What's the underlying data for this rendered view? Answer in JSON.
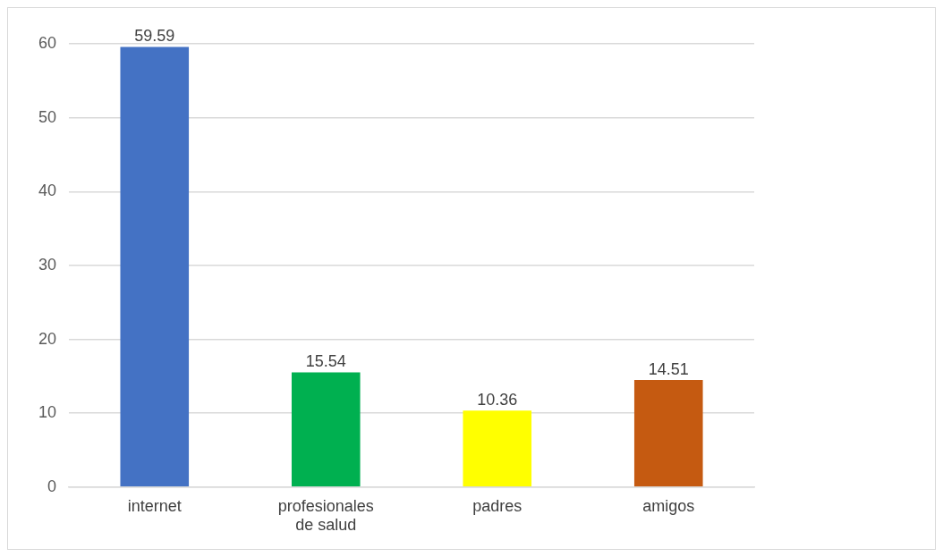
{
  "chart_data": {
    "type": "bar",
    "categories": [
      "internet",
      "profesionales de salud",
      "padres",
      "amigos"
    ],
    "values": [
      59.59,
      15.54,
      10.36,
      14.51
    ],
    "colors": [
      "#4472c4",
      "#00b050",
      "#ffff00",
      "#c55a11"
    ],
    "ylim": [
      0,
      60
    ],
    "yticks": [
      0,
      10,
      20,
      30,
      40,
      50,
      60
    ],
    "grid": "y",
    "data_labels": true,
    "legend": false
  }
}
